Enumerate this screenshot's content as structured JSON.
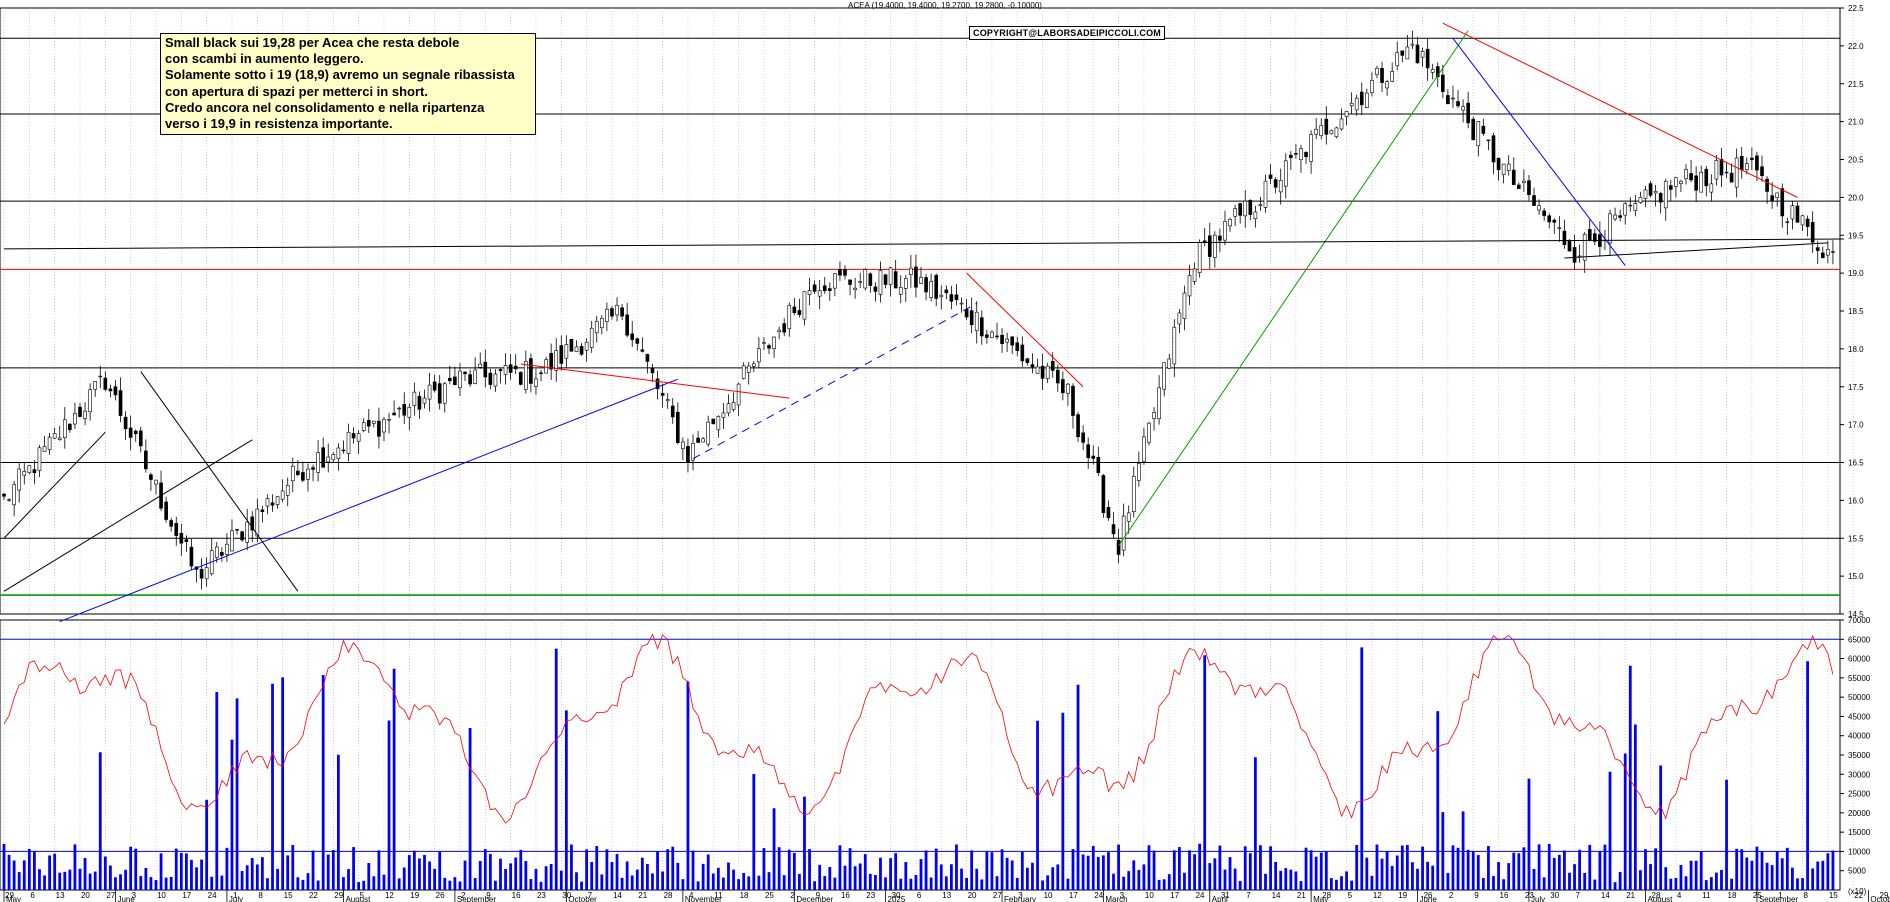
{
  "chart_data": {
    "type": "candlestick",
    "title": "ACEA (19.4000, 19.4000, 19.2700, 19.2800, -0.10000)",
    "copyright": "COPYRIGHT@LABORSADEIPICCOLI.COM",
    "annotation_lines": [
      "Small black sui 19,28 per Acea che resta debole",
      "con scambi in aumento leggero.",
      "Solamente sotto i 19 (18,9) avremo un segnale ribassista",
      "con apertura di spazi per metterci in short.",
      "Credo ancora nel consolidamento e nella ripartenza",
      "verso i 19,9 in resistenza importante."
    ],
    "price_ylim": [
      14.5,
      22.5
    ],
    "price_ticks": [
      "14.5",
      "15.0",
      "15.5",
      "16.0",
      "16.5",
      "17.0",
      "17.5",
      "18.0",
      "18.5",
      "19.0",
      "19.5",
      "20.0",
      "20.5",
      "21.0",
      "21.5",
      "22.0",
      "22.5"
    ],
    "volume_ylim": [
      0,
      70000
    ],
    "volume_ticks": [
      "5000",
      "10000",
      "15000",
      "20000",
      "25000",
      "30000",
      "35000",
      "40000",
      "45000",
      "50000",
      "55000",
      "60000",
      "65000",
      "70000"
    ],
    "volume_axis_unit": "(x10)",
    "months": [
      {
        "label": "May",
        "i": 0
      },
      {
        "label": "June",
        "i": 22
      },
      {
        "label": "July",
        "i": 44
      },
      {
        "label": "August",
        "i": 67
      },
      {
        "label": "September",
        "i": 89
      },
      {
        "label": "October",
        "i": 111
      },
      {
        "label": "November",
        "i": 134
      },
      {
        "label": "December",
        "i": 156
      },
      {
        "label": "2025",
        "i": 174
      },
      {
        "label": "February",
        "i": 197
      },
      {
        "label": "March",
        "i": 217
      },
      {
        "label": "April",
        "i": 238
      },
      {
        "label": "May",
        "i": 258
      },
      {
        "label": "June",
        "i": 279
      },
      {
        "label": "July",
        "i": 301
      },
      {
        "label": "August",
        "i": 324
      },
      {
        "label": "September",
        "i": 346
      },
      {
        "label": "October",
        "i": 368
      }
    ],
    "day_labels": [
      "29",
      "6",
      "13",
      "20",
      "27",
      "3",
      "10",
      "17",
      "24",
      "1",
      "8",
      "15",
      "22",
      "29",
      "5",
      "12",
      "19",
      "26",
      "2",
      "9",
      "16",
      "23",
      "30",
      "7",
      "14",
      "21",
      "28",
      "4",
      "11",
      "18",
      "25",
      "2",
      "9",
      "16",
      "23",
      "30",
      "6",
      "13",
      "20",
      "27",
      "3",
      "10",
      "17",
      "24",
      "3",
      "10",
      "17",
      "24",
      "31",
      "7",
      "14",
      "21",
      "28",
      "5",
      "12",
      "19",
      "26",
      "2",
      "9",
      "16",
      "23",
      "30",
      "7",
      "14",
      "21",
      "28",
      "4",
      "11",
      "18",
      "25",
      "1",
      "8",
      "15",
      "22",
      "29",
      "6"
    ],
    "horizontal_levels": [
      {
        "y": 14.75,
        "color": "#00a000"
      },
      {
        "y": 15.5,
        "color": "#000000"
      },
      {
        "y": 16.5,
        "color": "#000000"
      },
      {
        "y": 17.75,
        "color": "#000000"
      },
      {
        "y": 19.05,
        "color": "#ff0000"
      },
      {
        "y": 19.95,
        "color": "#000000"
      },
      {
        "y": 21.1,
        "color": "#000000"
      },
      {
        "y": 22.1,
        "color": "#000000"
      }
    ],
    "volume_levels": [
      {
        "y": 10000,
        "color": "#0000ff"
      },
      {
        "y": 65000,
        "color": "#0000ff"
      }
    ],
    "key_prices": [
      {
        "i": 0,
        "close": 16.0
      },
      {
        "i": 20,
        "close": 17.6
      },
      {
        "i": 38,
        "close": 15.0
      },
      {
        "i": 60,
        "close": 16.5
      },
      {
        "i": 90,
        "close": 17.6
      },
      {
        "i": 106,
        "close": 17.7
      },
      {
        "i": 122,
        "close": 18.5
      },
      {
        "i": 135,
        "close": 16.6
      },
      {
        "i": 160,
        "close": 18.9
      },
      {
        "i": 180,
        "close": 18.9
      },
      {
        "i": 190,
        "close": 18.5
      },
      {
        "i": 210,
        "close": 17.4
      },
      {
        "i": 220,
        "close": 15.4
      },
      {
        "i": 235,
        "close": 19.2
      },
      {
        "i": 248,
        "close": 20.0
      },
      {
        "i": 262,
        "close": 21.0
      },
      {
        "i": 278,
        "close": 22.0
      },
      {
        "i": 298,
        "close": 20.2
      },
      {
        "i": 310,
        "close": 19.3
      },
      {
        "i": 330,
        "close": 20.2
      },
      {
        "i": 344,
        "close": 20.4
      },
      {
        "i": 360,
        "close": 19.28
      }
    ],
    "bars_count": 362
  }
}
